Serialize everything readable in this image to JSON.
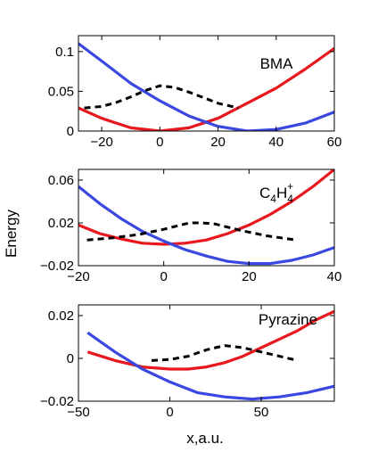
{
  "figure": {
    "ylabel": "Energy",
    "xlabel": "x,a.u."
  },
  "chart_data": [
    {
      "type": "line",
      "title": "BMA",
      "xlim": [
        -28,
        60
      ],
      "ylim": [
        0,
        0.12
      ],
      "xticks": [
        -20,
        0,
        20,
        40,
        60
      ],
      "xtick_labels": [
        "−20",
        "0",
        "20",
        "40",
        "60"
      ],
      "yticks": [
        0,
        0.05,
        0.1
      ],
      "ytick_labels": [
        "0",
        "0.05",
        "0.1"
      ],
      "grid": false,
      "series": [
        {
          "color": "#e8181e",
          "style": "solid",
          "x": [
            -28,
            -20,
            -10,
            0,
            10,
            20,
            30,
            40,
            50,
            60
          ],
          "y": [
            0.029,
            0.016,
            0.004,
            0.0,
            0.004,
            0.016,
            0.035,
            0.054,
            0.078,
            0.104
          ]
        },
        {
          "color": "#3a47e0",
          "style": "solid",
          "x": [
            -28,
            -20,
            -10,
            0,
            10,
            20,
            30,
            40,
            50,
            60
          ],
          "y": [
            0.11,
            0.088,
            0.06,
            0.038,
            0.019,
            0.006,
            0.0,
            0.002,
            0.01,
            0.024
          ]
        },
        {
          "color": "#000000",
          "style": "dashed",
          "x": [
            -26,
            -20,
            -15,
            -10,
            -5,
            0,
            5,
            10,
            15,
            20,
            27
          ],
          "y": [
            0.029,
            0.031,
            0.036,
            0.043,
            0.051,
            0.057,
            0.055,
            0.049,
            0.042,
            0.035,
            0.029
          ]
        }
      ]
    },
    {
      "type": "line",
      "title": "C4H4+",
      "title_parts": {
        "base": "C",
        "sub1": "4",
        "mid": "H",
        "sub2": "4",
        "sup": "+"
      },
      "xlim": [
        -20,
        40
      ],
      "ylim": [
        -0.02,
        0.07
      ],
      "xticks": [
        -20,
        0,
        20,
        40
      ],
      "xtick_labels": [
        "−20",
        "0",
        "20",
        "40"
      ],
      "yticks": [
        -0.02,
        0.02,
        0.06
      ],
      "ytick_labels": [
        "−0.02",
        "0.02",
        "0.06"
      ],
      "grid": false,
      "series": [
        {
          "color": "#e8181e",
          "style": "solid",
          "x": [
            -20,
            -15,
            -10,
            -5,
            0,
            5,
            10,
            15,
            20,
            25,
            30,
            35,
            40
          ],
          "y": [
            0.018,
            0.01,
            0.005,
            0.001,
            0.0,
            0.001,
            0.004,
            0.01,
            0.018,
            0.028,
            0.04,
            0.054,
            0.07
          ]
        },
        {
          "color": "#3a47e0",
          "style": "solid",
          "x": [
            -20,
            -15,
            -10,
            -5,
            0,
            5,
            10,
            15,
            20,
            25,
            30,
            35,
            40
          ],
          "y": [
            0.054,
            0.038,
            0.024,
            0.012,
            0.003,
            -0.005,
            -0.011,
            -0.016,
            -0.018,
            -0.018,
            -0.015,
            -0.01,
            -0.003
          ]
        },
        {
          "color": "#000000",
          "style": "dashed",
          "x": [
            -18,
            -12,
            -6,
            0,
            3,
            6,
            9,
            12,
            18,
            24,
            31
          ],
          "y": [
            0.004,
            0.006,
            0.009,
            0.014,
            0.017,
            0.02,
            0.02,
            0.019,
            0.013,
            0.008,
            0.004
          ]
        }
      ]
    },
    {
      "type": "line",
      "title": "Pyrazine",
      "xlim": [
        -50,
        90
      ],
      "ylim": [
        -0.02,
        0.025
      ],
      "xticks": [
        -50,
        0,
        50
      ],
      "xtick_labels": [
        "−50",
        "0",
        "50"
      ],
      "yticks": [
        -0.02,
        0,
        0.02
      ],
      "ytick_labels": [
        "−0.02",
        "0",
        "0.02"
      ],
      "grid": false,
      "series": [
        {
          "color": "#e8181e",
          "style": "solid",
          "x": [
            -45,
            -30,
            -15,
            0,
            10,
            20,
            30,
            40,
            50,
            60,
            70,
            80,
            90
          ],
          "y": [
            0.003,
            -0.001,
            -0.004,
            -0.005,
            -0.005,
            -0.004,
            -0.002,
            0.001,
            0.005,
            0.009,
            0.013,
            0.018,
            0.022
          ]
        },
        {
          "color": "#3a47e0",
          "style": "solid",
          "x": [
            -45,
            -30,
            -15,
            0,
            15,
            30,
            45,
            60,
            75,
            90
          ],
          "y": [
            0.012,
            0.003,
            -0.005,
            -0.011,
            -0.016,
            -0.018,
            -0.019,
            -0.018,
            -0.016,
            -0.013
          ]
        },
        {
          "color": "#000000",
          "style": "dashed",
          "x": [
            -10,
            0,
            10,
            20,
            30,
            35,
            40,
            50,
            60,
            70
          ],
          "y": [
            -0.001,
            -0.0005,
            0.001,
            0.004,
            0.006,
            0.0055,
            0.005,
            0.003,
            0.001,
            -0.001
          ]
        }
      ]
    }
  ]
}
